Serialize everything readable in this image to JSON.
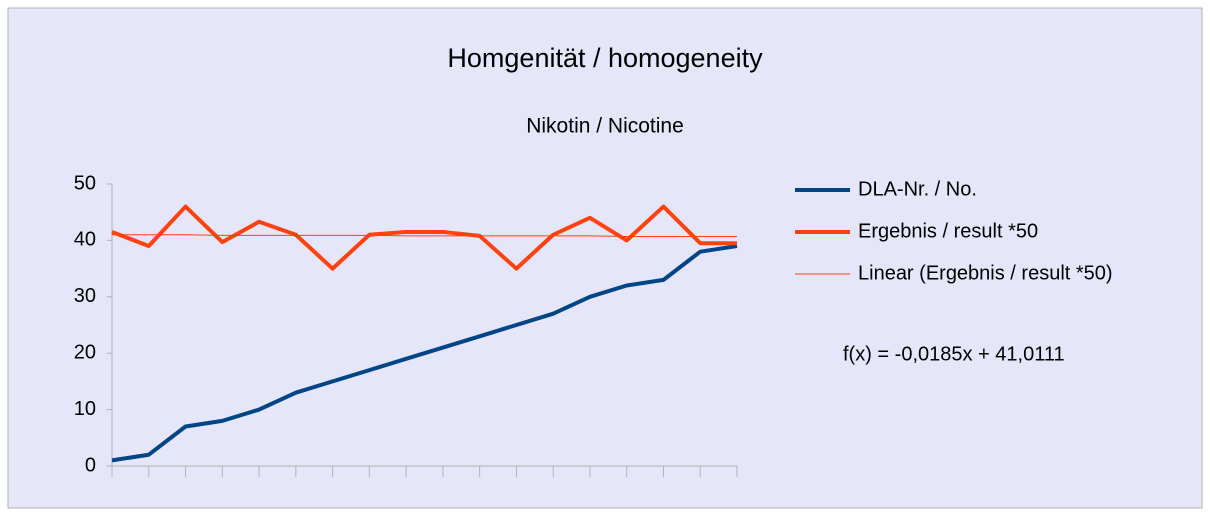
{
  "chart_data": {
    "type": "line",
    "title": "Homgenität / homogeneity",
    "subtitle": "Nikotin / Nicotine",
    "categories": [
      null,
      null,
      null,
      null,
      null,
      null,
      null,
      null,
      null,
      null,
      null,
      null,
      null,
      null,
      null,
      null,
      null,
      null
    ],
    "series": [
      {
        "name": "DLA-Nr. / No.",
        "color": "#004586",
        "width": 4,
        "values": [
          1,
          2,
          7,
          8,
          10,
          13,
          15,
          17,
          19,
          21,
          23,
          25,
          27,
          30,
          32,
          33,
          38,
          39
        ]
      },
      {
        "name": "Ergebnis / result *50",
        "color": "#ff420e",
        "width": 4,
        "values": [
          41.5,
          39,
          46,
          39.7,
          43.3,
          41,
          35,
          41,
          41.5,
          41.5,
          40.8,
          35,
          41,
          44,
          40,
          46,
          39.5,
          39.5
        ]
      },
      {
        "name": "Linear (Ergebnis / result *50)",
        "color": "#ff420e",
        "width": 1,
        "values": [
          41.0,
          41.0,
          41.0,
          40.9,
          40.9,
          40.9,
          40.9,
          40.9,
          40.8,
          40.8,
          40.8,
          40.8,
          40.8,
          40.8,
          40.7,
          40.7,
          40.7,
          40.7
        ]
      }
    ],
    "annotation": "f(x) = -0,0185x + 41,0111",
    "ylim": [
      0,
      50
    ],
    "yticks": [
      0,
      10,
      20,
      30,
      40,
      50
    ],
    "grid": false,
    "legend": "right"
  }
}
